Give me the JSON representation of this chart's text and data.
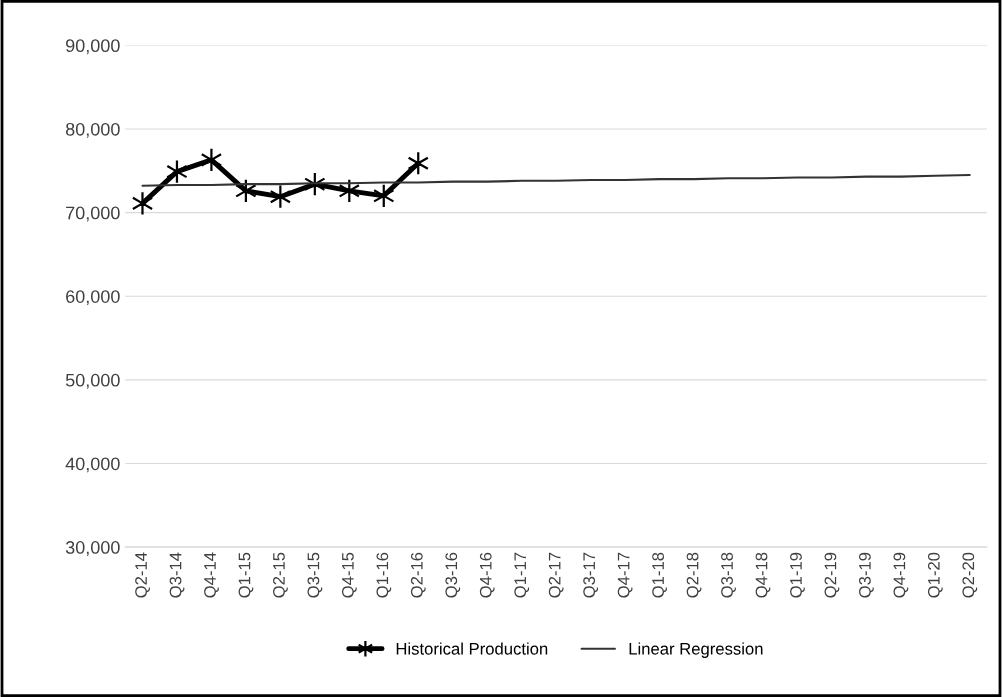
{
  "chart_data": {
    "type": "line",
    "categories": [
      "Q2-14",
      "Q3-14",
      "Q4-14",
      "Q1-15",
      "Q2-15",
      "Q3-15",
      "Q4-15",
      "Q1-16",
      "Q2-16",
      "Q3-16",
      "Q4-16",
      "Q1-17",
      "Q2-17",
      "Q3-17",
      "Q4-17",
      "Q1-18",
      "Q2-18",
      "Q3-18",
      "Q4-18",
      "Q1-19",
      "Q2-19",
      "Q3-19",
      "Q4-19",
      "Q1-20",
      "Q2-20"
    ],
    "series": [
      {
        "name": "Historical Production",
        "color": "#000000",
        "marker": "cross",
        "values": [
          71100,
          74900,
          76300,
          72600,
          71900,
          73400,
          72600,
          72000,
          75900,
          null,
          null,
          null,
          null,
          null,
          null,
          null,
          null,
          null,
          null,
          null,
          null,
          null,
          null,
          null,
          null
        ]
      },
      {
        "name": "Linear Regression",
        "color": "#333333",
        "marker": "none",
        "values": [
          73200,
          73300,
          73300,
          73400,
          73400,
          73500,
          73500,
          73600,
          73600,
          73700,
          73700,
          73800,
          73800,
          73900,
          73900,
          74000,
          74000,
          74100,
          74100,
          74200,
          74200,
          74300,
          74300,
          74400,
          74500
        ]
      }
    ],
    "ylim": [
      30000,
      90000
    ],
    "yticks": [
      {
        "value": 30000,
        "label": "30,000"
      },
      {
        "value": 40000,
        "label": "40,000"
      },
      {
        "value": 50000,
        "label": "50,000"
      },
      {
        "value": 60000,
        "label": "60,000"
      },
      {
        "value": 70000,
        "label": "70,000"
      },
      {
        "value": 80000,
        "label": "80,000"
      },
      {
        "value": 90000,
        "label": "90,000"
      }
    ],
    "grid": "y",
    "legend": "bottom"
  }
}
